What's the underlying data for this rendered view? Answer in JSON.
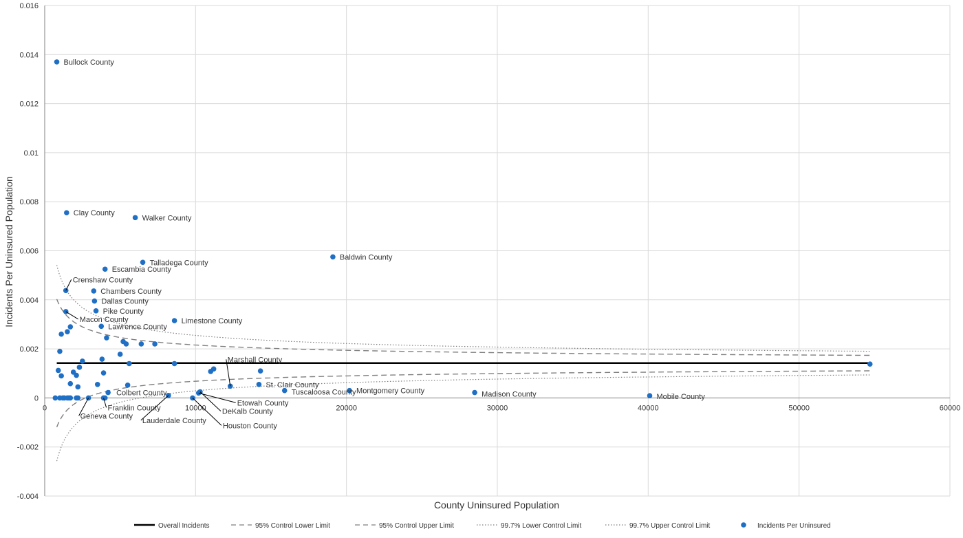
{
  "colors": {
    "grid": "#d9d9d9",
    "axis": "#808080",
    "overall_line": "#000000",
    "control_lines": "#7f7f7f",
    "points": "#1f6fc5",
    "text": "#333333"
  },
  "chart_data": {
    "type": "scatter",
    "title": "",
    "xlabel": "County Uninsured Population",
    "ylabel": "Incidents Per Uninsured Population",
    "xlim": [
      0,
      60000
    ],
    "ylim": [
      -0.004,
      0.016
    ],
    "x_ticks": [
      0,
      10000,
      20000,
      30000,
      40000,
      50000,
      60000
    ],
    "x_tick_labels": [
      "0",
      "10000",
      "20000",
      "30000",
      "40000",
      "50000",
      "60000"
    ],
    "y_ticks": [
      -0.004,
      -0.002,
      0,
      0.002,
      0.004,
      0.006,
      0.008,
      0.01,
      0.012,
      0.014,
      0.016
    ],
    "y_tick_labels": [
      "-0.004",
      "-0.002",
      "0",
      "0.002",
      "0.004",
      "0.006",
      "0.008",
      "0.01",
      "0.012",
      "0.014",
      "0.016"
    ],
    "grid": true,
    "legend_position": "bottom",
    "overall_incidents_rate": 0.00142,
    "control_limit_x_range": [
      800,
      54700
    ],
    "legend": [
      {
        "key": "overall",
        "label": "Overall Incidents",
        "style": "solid"
      },
      {
        "key": "lcl95",
        "label": "95% Control Lower Limit",
        "style": "dashed"
      },
      {
        "key": "ucl95",
        "label": "95% Control Upper Limit",
        "style": "dashed"
      },
      {
        "key": "lcl997",
        "label": "99.7% Lower Control Limit",
        "style": "dotted"
      },
      {
        "key": "ucl997",
        "label": "99.7% Upper Control Limit",
        "style": "dotted"
      },
      {
        "key": "points",
        "label": "Incidents Per Uninsured",
        "style": "marker"
      }
    ],
    "labeled_points": [
      {
        "name": "Bullock County",
        "x": 800,
        "y": 0.0137,
        "label_dx": 10,
        "label_dy": 4
      },
      {
        "name": "Clay County",
        "x": 1450,
        "y": 0.00755,
        "label_dx": 10,
        "label_dy": 4
      },
      {
        "name": "Walker County",
        "x": 6000,
        "y": 0.00735,
        "label_dx": 10,
        "label_dy": 4
      },
      {
        "name": "Talladega County",
        "x": 6500,
        "y": 0.00553,
        "label_dx": 10,
        "label_dy": 4
      },
      {
        "name": "Baldwin County",
        "x": 19100,
        "y": 0.00575,
        "label_dx": 10,
        "label_dy": 4
      },
      {
        "name": "Escambia County",
        "x": 4000,
        "y": 0.00525,
        "label_dx": 10,
        "label_dy": 4
      },
      {
        "name": "Crenshaw County",
        "x": 1400,
        "y": 0.00438,
        "label_dx": 10,
        "label_dy": -12,
        "leader": true
      },
      {
        "name": "Chambers County",
        "x": 3250,
        "y": 0.00436,
        "label_dx": 10,
        "label_dy": 4
      },
      {
        "name": "Dallas County",
        "x": 3300,
        "y": 0.00395,
        "label_dx": 10,
        "label_dy": 4
      },
      {
        "name": "Pike County",
        "x": 3400,
        "y": 0.00355,
        "label_dx": 10,
        "label_dy": 4
      },
      {
        "name": "Macon County",
        "x": 1400,
        "y": 0.00352,
        "label_dx": 20,
        "label_dy": 15,
        "leader": true
      },
      {
        "name": "Lawrence County",
        "x": 3750,
        "y": 0.00292,
        "label_dx": 10,
        "label_dy": 4
      },
      {
        "name": "Limestone County",
        "x": 8600,
        "y": 0.00315,
        "label_dx": 10,
        "label_dy": 4
      },
      {
        "name": "Marshall County",
        "x": 12300,
        "y": 0.00048,
        "label_dx": -4,
        "label_dy": -35,
        "leader": true
      },
      {
        "name": "St. Clair County",
        "x": 14200,
        "y": 0.00055,
        "label_dx": 10,
        "label_dy": 4
      },
      {
        "name": "Tuscaloosa County",
        "x": 15900,
        "y": 0.0003,
        "label_dx": 10,
        "label_dy": 6
      },
      {
        "name": "Montgomery County",
        "x": 20200,
        "y": 0.0003,
        "label_dx": 10,
        "label_dy": 4
      },
      {
        "name": "Madison County",
        "x": 28500,
        "y": 0.00022,
        "label_dx": 10,
        "label_dy": 6
      },
      {
        "name": "Mobile County",
        "x": 40100,
        "y": 9e-05,
        "label_dx": 10,
        "label_dy": 5
      },
      {
        "name": "Colbert County",
        "x": 4200,
        "y": 0.00022,
        "label_dx": 12,
        "label_dy": 4
      },
      {
        "name": "Franklin County",
        "x": 3900,
        "y": 0.0,
        "label_dx": 6,
        "label_dy": 18,
        "leader": true
      },
      {
        "name": "Geneva County",
        "x": 2900,
        "y": 0.0,
        "label_dx": -12,
        "label_dy": 30,
        "leader": true
      },
      {
        "name": "Lauderdale County",
        "x": 8200,
        "y": 0.0001,
        "label_dx": -38,
        "label_dy": 40,
        "leader": true
      },
      {
        "name": "Etowah County",
        "x": 10200,
        "y": 0.0002,
        "label_dx": 56,
        "label_dy": 18,
        "leader": true
      },
      {
        "name": "DeKalb County",
        "x": 10300,
        "y": 0.00025,
        "label_dx": 32,
        "label_dy": 32,
        "leader": true
      },
      {
        "name": "Houston County",
        "x": 9800,
        "y": 0.0,
        "label_dx": 44,
        "label_dy": 44,
        "leader": true
      }
    ],
    "other_points": [
      [
        54700,
        0.00138
      ],
      [
        14300,
        0.0011
      ],
      [
        11200,
        0.00118
      ],
      [
        11000,
        0.00108
      ],
      [
        8600,
        0.0014
      ],
      [
        7300,
        0.0022
      ],
      [
        6400,
        0.0022
      ],
      [
        5600,
        0.0014
      ],
      [
        5200,
        0.0023
      ],
      [
        5400,
        0.0022
      ],
      [
        5500,
        0.00052
      ],
      [
        5000,
        0.00178
      ],
      [
        4100,
        0.00245
      ],
      [
        3800,
        0.00158
      ],
      [
        3900,
        0.00102
      ],
      [
        3500,
        0.00055
      ],
      [
        4000,
        0.0
      ],
      [
        2500,
        0.0015
      ],
      [
        2300,
        0.00125
      ],
      [
        2200,
        0.00045
      ],
      [
        2100,
        0.00092
      ],
      [
        1900,
        0.00105
      ],
      [
        1700,
        0.00058
      ],
      [
        1700,
        0.0029
      ],
      [
        1500,
        0.0027
      ],
      [
        1100,
        0.0026
      ],
      [
        1000,
        0.0019
      ],
      [
        900,
        0.00112
      ],
      [
        1100,
        0.0009
      ],
      [
        700,
        0.0
      ],
      [
        1000,
        0.0
      ],
      [
        1200,
        0.0
      ],
      [
        1300,
        0.0
      ],
      [
        1500,
        0.0
      ],
      [
        1600,
        0.0
      ],
      [
        1700,
        0.0
      ],
      [
        2200,
        0.0
      ],
      [
        2100,
        0.0
      ]
    ]
  }
}
